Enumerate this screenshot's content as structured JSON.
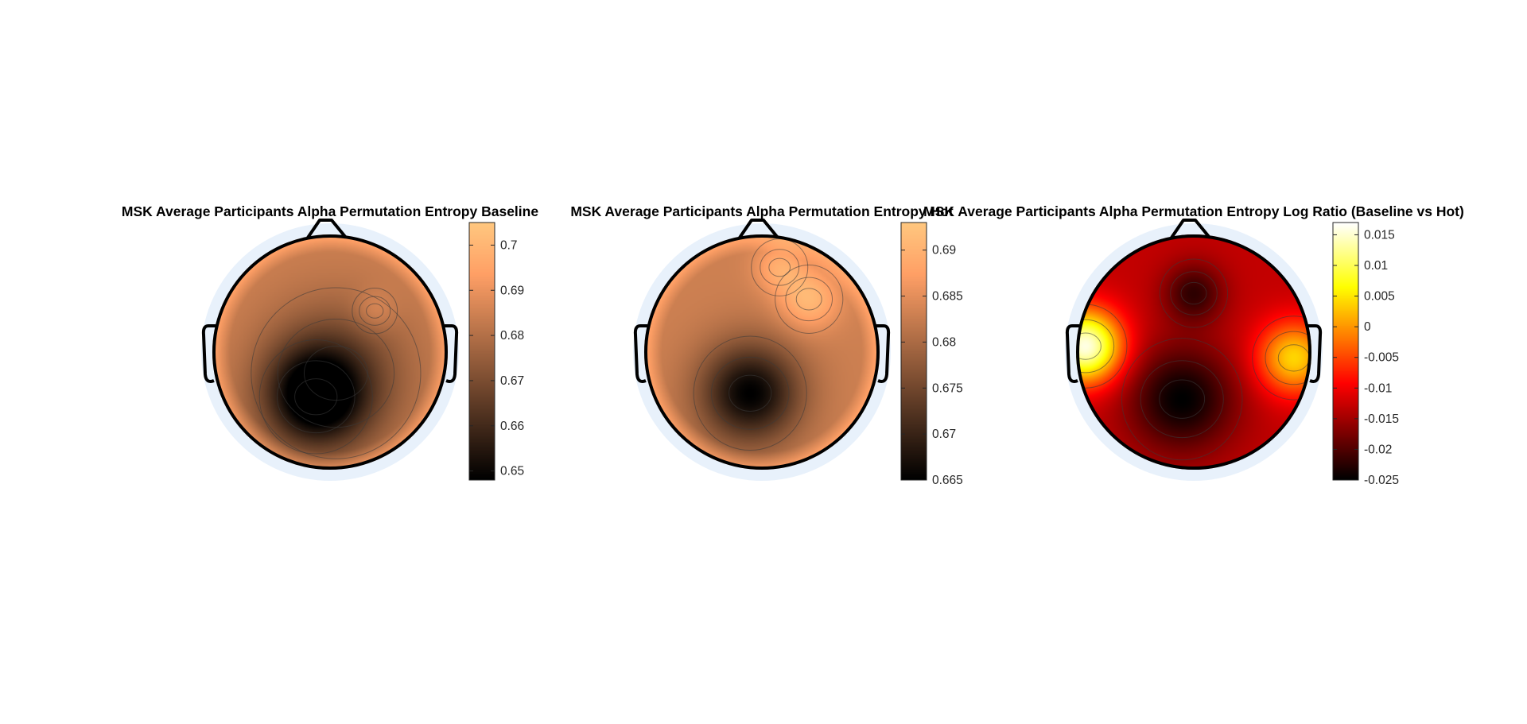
{
  "figure": {
    "background": "#ffffff",
    "scalp_surround_color": "#e8f1fb",
    "head_outline_color": "#000000",
    "contour_color": "#3a3a3a"
  },
  "chart_data": [
    {
      "type": "heatmap",
      "subtype": "topographic-scalp-map",
      "title": "MSK Average Participants Alpha Permutation Entropy Baseline",
      "colormap": "copper",
      "clim": [
        0.648,
        0.705
      ],
      "colorbar_ticks": [
        0.65,
        0.66,
        0.67,
        0.68,
        0.69,
        0.7
      ],
      "colorbar_tick_labels": [
        "0.65",
        "0.66",
        "0.67",
        "0.68",
        "0.69",
        "0.7"
      ],
      "background_level": 0.685,
      "features": [
        {
          "region": "posterior-left center",
          "x": -0.12,
          "y": -0.38,
          "value": 0.648,
          "spread": 0.3
        },
        {
          "region": "posterior",
          "x": 0.05,
          "y": -0.18,
          "value": 0.668,
          "spread": 0.45
        },
        {
          "region": "right frontal",
          "x": 0.38,
          "y": 0.35,
          "value": 0.692,
          "spread": 0.12
        },
        {
          "region": "rim",
          "x": 0.0,
          "y": 0.0,
          "value": 0.7,
          "spread": 0.0
        }
      ]
    },
    {
      "type": "heatmap",
      "subtype": "topographic-scalp-map",
      "title": "MSK Average Participants Alpha Permutation Entropy Hot",
      "colormap": "copper",
      "clim": [
        0.665,
        0.693
      ],
      "colorbar_ticks": [
        0.665,
        0.67,
        0.675,
        0.68,
        0.685,
        0.69
      ],
      "colorbar_tick_labels": [
        "0.665",
        "0.67",
        "0.675",
        "0.68",
        "0.685",
        "0.69"
      ],
      "background_level": 0.683,
      "features": [
        {
          "region": "posterior-left center",
          "x": -0.1,
          "y": -0.35,
          "value": 0.665,
          "spread": 0.3
        },
        {
          "region": "right frontal",
          "x": 0.4,
          "y": 0.45,
          "value": 0.691,
          "spread": 0.18
        },
        {
          "region": "frontal",
          "x": 0.15,
          "y": 0.72,
          "value": 0.689,
          "spread": 0.15
        },
        {
          "region": "rim",
          "x": 0.0,
          "y": 0.0,
          "value": 0.69,
          "spread": 0.0
        }
      ]
    },
    {
      "type": "heatmap",
      "subtype": "topographic-scalp-map",
      "title": "MSK Average Participants Alpha Permutation Entropy Log Ratio (Baseline vs Hot)",
      "colormap": "hot",
      "clim": [
        -0.025,
        0.017
      ],
      "colorbar_ticks": [
        -0.025,
        -0.02,
        -0.015,
        -0.01,
        -0.005,
        0,
        0.005,
        0.01,
        0.015
      ],
      "colorbar_tick_labels": [
        "-0.025",
        "-0.02",
        "-0.015",
        "-0.01",
        "-0.005",
        "0",
        "0.005",
        "0.01",
        "0.015"
      ],
      "background_level": -0.013,
      "features": [
        {
          "region": "posterior-left center",
          "x": -0.1,
          "y": -0.4,
          "value": -0.025,
          "spread": 0.32
        },
        {
          "region": "frontal",
          "x": 0.0,
          "y": 0.5,
          "value": -0.022,
          "spread": 0.18
        },
        {
          "region": "left temporal",
          "x": -0.92,
          "y": 0.05,
          "value": 0.016,
          "spread": 0.22
        },
        {
          "region": "right temporal",
          "x": 0.85,
          "y": -0.05,
          "value": 0.004,
          "spread": 0.22
        }
      ]
    }
  ]
}
